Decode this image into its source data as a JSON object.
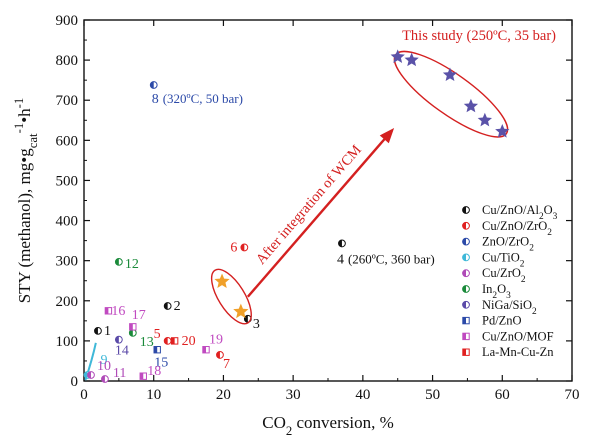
{
  "chart_data": {
    "type": "scatter",
    "xlabel_parts": [
      "CO",
      "2",
      " conversion, %"
    ],
    "ylabel_parts": [
      "STY (methanol), mg",
      "•",
      "g",
      "cat",
      "-1",
      "•",
      "h",
      "-1"
    ],
    "xlim": [
      0,
      70
    ],
    "ylim": [
      0,
      900
    ],
    "xticks": [
      0,
      10,
      20,
      30,
      40,
      50,
      60,
      70
    ],
    "yticks": [
      0,
      100,
      200,
      300,
      400,
      500,
      600,
      700,
      800,
      900
    ],
    "grid": false,
    "legend_position": "right",
    "legend": [
      {
        "parts": [
          "Cu/ZnO/Al",
          "2",
          "O",
          "3"
        ],
        "color": "#111111",
        "marker": "half-circle"
      },
      {
        "parts": [
          "Cu/ZnO/ZrO",
          "2"
        ],
        "color": "#e02020",
        "marker": "half-circle"
      },
      {
        "parts": [
          "ZnO/ZrO",
          "2"
        ],
        "color": "#2c4aa8",
        "marker": "half-circle"
      },
      {
        "parts": [
          "Cu/TiO",
          "2"
        ],
        "color": "#3fb8d8",
        "marker": "half-circle"
      },
      {
        "parts": [
          "Cu/ZrO",
          "2"
        ],
        "color": "#b04ab8",
        "marker": "half-circle"
      },
      {
        "parts": [
          "In",
          "2",
          "O",
          "3"
        ],
        "color": "#1a8a3a",
        "marker": "half-circle"
      },
      {
        "parts": [
          "NiGa/SiO",
          "2"
        ],
        "color": "#5b4aa8",
        "marker": "half-circle"
      },
      {
        "parts": [
          "Pd/ZnO"
        ],
        "color": "#2c4aa8",
        "marker": "half-square"
      },
      {
        "parts": [
          "Cu/ZnO/MOF"
        ],
        "color": "#c04ac0",
        "marker": "half-square"
      },
      {
        "parts": [
          "La-Mn-Cu-Zn"
        ],
        "color": "#e02020",
        "marker": "half-square"
      }
    ],
    "literature_points": [
      {
        "label": "1",
        "x": 2,
        "y": 125,
        "color": "#111111",
        "marker": "half-circle"
      },
      {
        "label": "2",
        "x": 12,
        "y": 187,
        "color": "#111111",
        "marker": "half-circle"
      },
      {
        "label": "3",
        "x": 23.5,
        "y": 155,
        "color": "#111111",
        "marker": "half-circle"
      },
      {
        "label": "4",
        "x": 37,
        "y": 343,
        "color": "#111111",
        "marker": "half-circle",
        "note": "(260ºC, 360 bar)"
      },
      {
        "label": "5",
        "x": 12,
        "y": 100,
        "color": "#e02020",
        "marker": "half-circle"
      },
      {
        "label": "6",
        "x": 23,
        "y": 333,
        "color": "#e02020",
        "marker": "half-circle"
      },
      {
        "label": "7",
        "x": 19.5,
        "y": 65,
        "color": "#e02020",
        "marker": "half-circle"
      },
      {
        "label": "8",
        "x": 10,
        "y": 738,
        "color": "#2c4aa8",
        "marker": "half-circle",
        "note": "(320ºC, 50 bar)"
      },
      {
        "label": "9",
        "x": 0.5,
        "y": 15,
        "color": "#3fb8d8",
        "marker": "half-circle"
      },
      {
        "label": "10",
        "x": 1,
        "y": 15,
        "color": "#b04ab8",
        "marker": "half-circle"
      },
      {
        "label": "11",
        "x": 3,
        "y": 5,
        "color": "#b04ab8",
        "marker": "half-circle"
      },
      {
        "label": "12",
        "x": 5,
        "y": 297,
        "color": "#1a8a3a",
        "marker": "half-circle"
      },
      {
        "label": "13",
        "x": 7,
        "y": 120,
        "color": "#1a8a3a",
        "marker": "half-circle"
      },
      {
        "label": "14",
        "x": 5,
        "y": 103,
        "color": "#5b4aa8",
        "marker": "half-circle"
      },
      {
        "label": "15",
        "x": 10.5,
        "y": 78,
        "color": "#2c4aa8",
        "marker": "half-square"
      },
      {
        "label": "16",
        "x": 3.5,
        "y": 175,
        "color": "#c04ac0",
        "marker": "half-square"
      },
      {
        "label": "17",
        "x": 7,
        "y": 135,
        "color": "#c04ac0",
        "marker": "half-square"
      },
      {
        "label": "18",
        "x": 8.5,
        "y": 12,
        "color": "#c04ac0",
        "marker": "half-square"
      },
      {
        "label": "19",
        "x": 17.5,
        "y": 78,
        "color": "#c04ac0",
        "marker": "half-square"
      },
      {
        "label": "20",
        "x": 13,
        "y": 100,
        "color": "#e02020",
        "marker": "half-square"
      }
    ],
    "wcm_points": [
      {
        "x": 19.8,
        "y": 248
      },
      {
        "x": 22.5,
        "y": 173
      }
    ],
    "this_study_points": [
      {
        "x": 45,
        "y": 808
      },
      {
        "x": 47,
        "y": 800
      },
      {
        "x": 52.5,
        "y": 763
      },
      {
        "x": 55.5,
        "y": 685
      },
      {
        "x": 57.5,
        "y": 650
      },
      {
        "x": 60,
        "y": 622
      }
    ],
    "annotations": {
      "this_study": "This study (250ºC, 35 bar)",
      "arrow_label": "After integration of WCM"
    },
    "colors": {
      "axis": "#111111",
      "annotation": "#d42020",
      "star_purple": "#5a52a8",
      "star_orange": "#f0a02a",
      "teal_line": "#3fb8d8"
    }
  }
}
